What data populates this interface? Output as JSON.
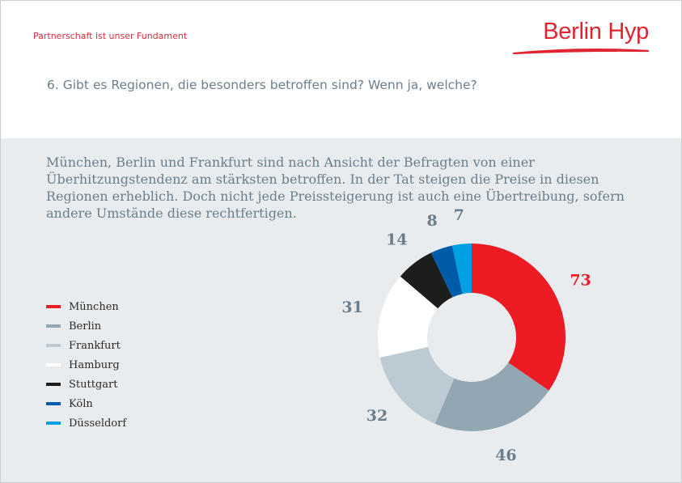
{
  "header": {
    "tagline": "Partnerschaft ist unser Fundament",
    "logo_text": "Berlin Hyp",
    "question": "6. Gibt es Regionen, die besonders betroffen sind? Wenn ja, welche?"
  },
  "intro": "München, Berlin und Frankfurt sind nach Ansicht der Befragten von einer Überhitzungstendenz am stärksten betroffen. In der Tat steigen die Preise in diesen Regionen erheblich. Doch nicht jede Preissteigerung ist auch eine Übertreibung, sofern andere Umstände diese rechtfertigen.",
  "colors": {
    "brand_red": "#e02531",
    "text_slate": "#6b7e8c",
    "background": "#e8ecee"
  },
  "chart_data": {
    "type": "pie",
    "variant": "donut",
    "start": "12 o'clock, clockwise",
    "categories": [
      "München",
      "Berlin",
      "Frankfurt",
      "Hamburg",
      "Stuttgart",
      "Köln",
      "Düsseldorf"
    ],
    "values": [
      73,
      46,
      32,
      31,
      14,
      8,
      7
    ],
    "colors": [
      "#ed1b24",
      "#92a6b3",
      "#bccad4",
      "#ffffff",
      "#1d1d1b",
      "#005ca9",
      "#00a0e3"
    ],
    "label_colors": [
      "#ed1b24",
      "#6b7e8c",
      "#6b7e8c",
      "#6b7e8c",
      "#6b7e8c",
      "#6b7e8c",
      "#6b7e8c"
    ],
    "legend_position": "left"
  }
}
